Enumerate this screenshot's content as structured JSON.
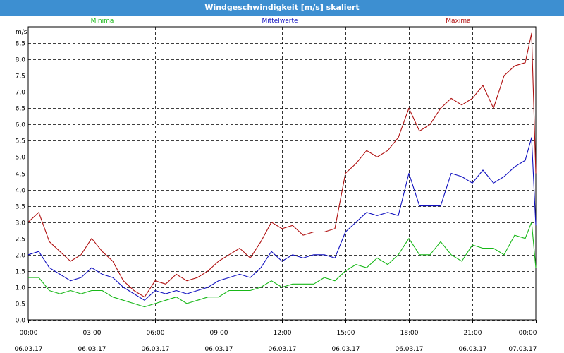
{
  "window": {
    "title": "Windgeschwindigkeit [m/s] skaliert"
  },
  "colors": {
    "min": "#18b818",
    "mean": "#1010c0",
    "max": "#b01010",
    "grid": "#000000",
    "titlebar": "#3d8fd1"
  },
  "chart_data": {
    "type": "line",
    "title": "Windgeschwindigkeit [m/s] skaliert",
    "ylabel": "m/s",
    "ylim": [
      0,
      9.0
    ],
    "yticks": [
      0.0,
      0.5,
      1.0,
      1.5,
      2.0,
      2.5,
      3.0,
      3.5,
      4.0,
      4.5,
      5.0,
      5.5,
      6.0,
      6.5,
      7.0,
      7.5,
      8.0,
      8.5
    ],
    "ytick_labels": [
      "0,0",
      "0,5",
      "1,0",
      "1,5",
      "2,0",
      "2,5",
      "3,0",
      "3,5",
      "4,0",
      "4,5",
      "5,0",
      "5,5",
      "6,0",
      "6,5",
      "7,0",
      "7,5",
      "8,0",
      "8,5"
    ],
    "xlim": [
      0,
      24
    ],
    "xticks": [
      0,
      3,
      6,
      9,
      12,
      15,
      18,
      21,
      24
    ],
    "xtick_labels": [
      {
        "time": "00:00",
        "date": "06.03.17"
      },
      {
        "time": "03:00",
        "date": "06.03.17"
      },
      {
        "time": "06:00",
        "date": "06.03.17"
      },
      {
        "time": "09:00",
        "date": "06.03.17"
      },
      {
        "time": "12:00",
        "date": "06.03.17"
      },
      {
        "time": "15:00",
        "date": "06.03.17"
      },
      {
        "time": "18:00",
        "date": "06.03.17"
      },
      {
        "time": "21:00",
        "date": "06.03.17"
      },
      {
        "time": "00:00",
        "date": "07.03.17"
      }
    ],
    "legend": [
      "Minima",
      "Mittelwerte",
      "Maxima"
    ],
    "series": [
      {
        "name": "Minima",
        "points": [
          [
            0,
            1.3
          ],
          [
            0.5,
            1.3
          ],
          [
            1,
            0.9
          ],
          [
            1.5,
            0.8
          ],
          [
            2,
            0.9
          ],
          [
            2.5,
            0.8
          ],
          [
            3,
            0.9
          ],
          [
            3.5,
            0.9
          ],
          [
            4,
            0.7
          ],
          [
            4.5,
            0.6
          ],
          [
            5,
            0.5
          ],
          [
            5.5,
            0.4
          ],
          [
            6,
            0.5
          ],
          [
            6.5,
            0.6
          ],
          [
            7,
            0.7
          ],
          [
            7.5,
            0.5
          ],
          [
            8,
            0.6
          ],
          [
            8.5,
            0.7
          ],
          [
            9,
            0.7
          ],
          [
            9.5,
            0.9
          ],
          [
            10,
            0.9
          ],
          [
            10.5,
            0.9
          ],
          [
            11,
            1.0
          ],
          [
            11.5,
            1.2
          ],
          [
            12,
            1.0
          ],
          [
            12.5,
            1.1
          ],
          [
            13,
            1.1
          ],
          [
            13.5,
            1.1
          ],
          [
            14,
            1.3
          ],
          [
            14.5,
            1.2
          ],
          [
            15,
            1.5
          ],
          [
            15.5,
            1.7
          ],
          [
            16,
            1.6
          ],
          [
            16.5,
            1.9
          ],
          [
            17,
            1.7
          ],
          [
            17.5,
            2.0
          ],
          [
            18,
            2.5
          ],
          [
            18.5,
            2.0
          ],
          [
            19,
            2.0
          ],
          [
            19.5,
            2.4
          ],
          [
            20,
            2.0
          ],
          [
            20.5,
            1.8
          ],
          [
            21,
            2.3
          ],
          [
            21.5,
            2.2
          ],
          [
            22,
            2.2
          ],
          [
            22.5,
            2.0
          ],
          [
            23,
            2.6
          ],
          [
            23.5,
            2.5
          ],
          [
            23.8,
            3.0
          ],
          [
            24,
            1.6
          ]
        ]
      },
      {
        "name": "Mittelwerte",
        "points": [
          [
            0,
            2.0
          ],
          [
            0.5,
            2.1
          ],
          [
            1,
            1.6
          ],
          [
            1.5,
            1.4
          ],
          [
            2,
            1.2
          ],
          [
            2.5,
            1.3
          ],
          [
            3,
            1.6
          ],
          [
            3.5,
            1.4
          ],
          [
            4,
            1.3
          ],
          [
            4.5,
            1.0
          ],
          [
            5,
            0.8
          ],
          [
            5.5,
            0.6
          ],
          [
            6,
            0.9
          ],
          [
            6.5,
            0.8
          ],
          [
            7,
            0.9
          ],
          [
            7.5,
            0.8
          ],
          [
            8,
            0.9
          ],
          [
            8.5,
            1.0
          ],
          [
            9,
            1.2
          ],
          [
            9.5,
            1.3
          ],
          [
            10,
            1.4
          ],
          [
            10.5,
            1.3
          ],
          [
            11,
            1.6
          ],
          [
            11.5,
            2.1
          ],
          [
            12,
            1.8
          ],
          [
            12.5,
            2.0
          ],
          [
            13,
            1.9
          ],
          [
            13.5,
            2.0
          ],
          [
            14,
            2.0
          ],
          [
            14.5,
            1.9
          ],
          [
            15,
            2.7
          ],
          [
            15.5,
            3.0
          ],
          [
            16,
            3.3
          ],
          [
            16.5,
            3.2
          ],
          [
            17,
            3.3
          ],
          [
            17.5,
            3.2
          ],
          [
            18,
            4.5
          ],
          [
            18.5,
            3.5
          ],
          [
            19,
            3.5
          ],
          [
            19.5,
            3.5
          ],
          [
            20,
            4.5
          ],
          [
            20.5,
            4.4
          ],
          [
            21,
            4.2
          ],
          [
            21.5,
            4.6
          ],
          [
            22,
            4.2
          ],
          [
            22.5,
            4.4
          ],
          [
            23,
            4.7
          ],
          [
            23.5,
            4.9
          ],
          [
            23.8,
            5.6
          ],
          [
            24,
            2.9
          ]
        ]
      },
      {
        "name": "Maxima",
        "points": [
          [
            0,
            3.0
          ],
          [
            0.5,
            3.3
          ],
          [
            1,
            2.4
          ],
          [
            1.5,
            2.1
          ],
          [
            2,
            1.8
          ],
          [
            2.5,
            2.0
          ],
          [
            3,
            2.5
          ],
          [
            3.5,
            2.1
          ],
          [
            4,
            1.8
          ],
          [
            4.5,
            1.2
          ],
          [
            5,
            0.9
          ],
          [
            5.5,
            0.7
          ],
          [
            6,
            1.2
          ],
          [
            6.5,
            1.1
          ],
          [
            7,
            1.4
          ],
          [
            7.5,
            1.2
          ],
          [
            8,
            1.3
          ],
          [
            8.5,
            1.5
          ],
          [
            9,
            1.8
          ],
          [
            9.5,
            2.0
          ],
          [
            10,
            2.2
          ],
          [
            10.5,
            1.9
          ],
          [
            11,
            2.4
          ],
          [
            11.5,
            3.0
          ],
          [
            12,
            2.8
          ],
          [
            12.5,
            2.9
          ],
          [
            13,
            2.6
          ],
          [
            13.5,
            2.7
          ],
          [
            14,
            2.7
          ],
          [
            14.5,
            2.8
          ],
          [
            15,
            4.5
          ],
          [
            15.5,
            4.8
          ],
          [
            16,
            5.2
          ],
          [
            16.5,
            5.0
          ],
          [
            17,
            5.2
          ],
          [
            17.5,
            5.6
          ],
          [
            18,
            6.5
          ],
          [
            18.5,
            5.8
          ],
          [
            19,
            6.0
          ],
          [
            19.5,
            6.5
          ],
          [
            20,
            6.8
          ],
          [
            20.5,
            6.6
          ],
          [
            21,
            6.8
          ],
          [
            21.5,
            7.2
          ],
          [
            22,
            6.5
          ],
          [
            22.5,
            7.5
          ],
          [
            23,
            7.8
          ],
          [
            23.5,
            7.9
          ],
          [
            23.8,
            8.8
          ],
          [
            24,
            4.5
          ]
        ]
      }
    ]
  }
}
